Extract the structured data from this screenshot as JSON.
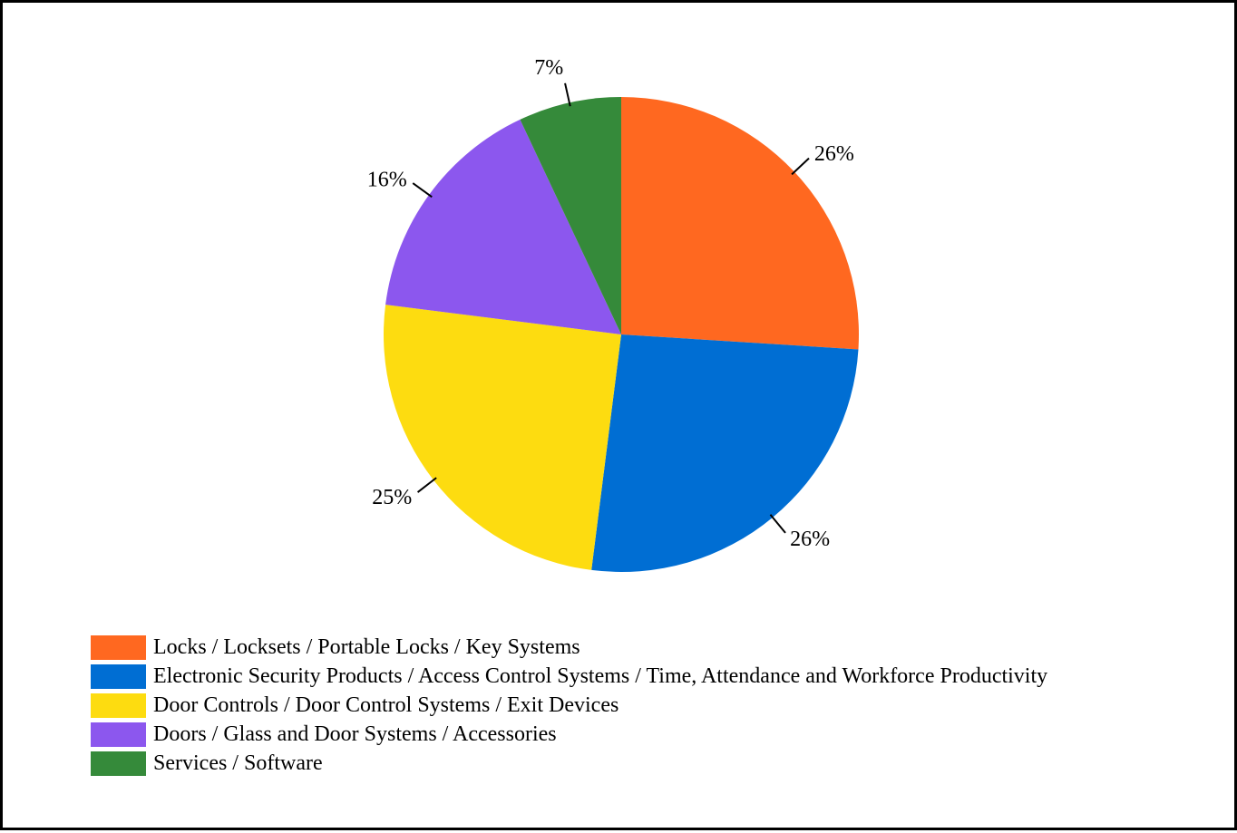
{
  "chart_data": {
    "type": "pie",
    "title": "",
    "slices": [
      {
        "label": "Locks / Locksets / Portable Locks / Key Systems",
        "value": 26,
        "display": "26%",
        "color": "#FF6820"
      },
      {
        "label": "Electronic Security Products / Access Control Systems / Time, Attendance and Workforce Productivity",
        "value": 26,
        "display": "26%",
        "color": "#006ED3"
      },
      {
        "label": "Door Controls / Door Control Systems / Exit Devices",
        "value": 25,
        "display": "25%",
        "color": "#FDDC10"
      },
      {
        "label": "Doors / Glass and Door Systems / Accessories",
        "value": 16,
        "display": "16%",
        "color": "#8C57EE"
      },
      {
        "label": "Services / Software",
        "value": 7,
        "display": "7%",
        "color": "#358A3A"
      }
    ],
    "legend_position": "bottom-left",
    "start_angle": "12 o'clock",
    "direction": "clockwise"
  }
}
